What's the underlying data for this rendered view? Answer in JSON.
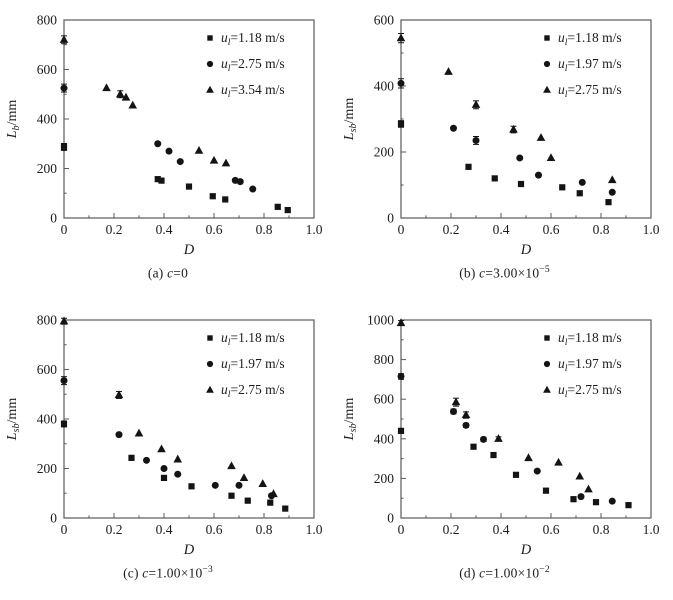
{
  "figure": {
    "background": "#ffffff",
    "axis_color": "#5a5a5a",
    "text_color": "#1c1c1c",
    "marker_color": "#141414"
  },
  "chart_data": [
    {
      "id": "a",
      "type": "scatter",
      "caption": {
        "prefix": "(a) ",
        "var": "c",
        "value": "=0",
        "exp": ""
      },
      "xlabel": "D",
      "ylabel": {
        "var": "L",
        "sub": "b",
        "unit": "/mm"
      },
      "xlim": [
        0,
        1.0
      ],
      "ylim": [
        0,
        800
      ],
      "xticks": [
        0,
        0.2,
        0.4,
        0.6,
        0.8,
        1.0
      ],
      "xtick_labels": [
        "0",
        "0.2",
        "0.4",
        "0.6",
        "0.8",
        "1.0"
      ],
      "yticks": [
        0,
        200,
        400,
        600,
        800
      ],
      "ytick_labels": [
        "0",
        "200",
        "400",
        "600",
        "800"
      ],
      "x_minor_step": 0.1,
      "y_minor_step": 100,
      "grid": false,
      "legend_position": "top-right",
      "series": [
        {
          "name": "ul=1.18 m/s",
          "marker": "square",
          "label": {
            "var": "u",
            "sub": "l",
            "value": "=1.18 m/s"
          },
          "points": [
            [
              0,
              287,
              14
            ],
            [
              0.375,
              157
            ],
            [
              0.39,
              151
            ],
            [
              0.5,
              127
            ],
            [
              0.595,
              88
            ],
            [
              0.645,
              75
            ],
            [
              0.855,
              45
            ],
            [
              0.895,
              32
            ]
          ]
        },
        {
          "name": "ul=2.75 m/s",
          "marker": "circle",
          "label": {
            "var": "u",
            "sub": "l",
            "value": "=2.75 m/s"
          },
          "points": [
            [
              0,
              525,
              16
            ],
            [
              0.375,
              300
            ],
            [
              0.42,
              270
            ],
            [
              0.465,
              228
            ],
            [
              0.685,
              152
            ],
            [
              0.705,
              147
            ],
            [
              0.755,
              117
            ]
          ]
        },
        {
          "name": "ul=3.54 m/s",
          "marker": "triangle",
          "label": {
            "var": "u",
            "sub": "l",
            "value": "=3.54 m/s"
          },
          "points": [
            [
              0,
              720,
              16
            ],
            [
              0.17,
              525
            ],
            [
              0.225,
              500,
              14
            ],
            [
              0.248,
              487
            ],
            [
              0.275,
              455
            ],
            [
              0.54,
              272
            ],
            [
              0.6,
              232
            ],
            [
              0.648,
              221
            ]
          ]
        }
      ]
    },
    {
      "id": "b",
      "type": "scatter",
      "caption": {
        "prefix": "(b) ",
        "var": "c",
        "value": "=3.00×10",
        "exp": "−5"
      },
      "xlabel": "D",
      "ylabel": {
        "var": "L",
        "sub": "sb",
        "unit": "/mm"
      },
      "xlim": [
        0,
        1.0
      ],
      "ylim": [
        0,
        600
      ],
      "xticks": [
        0,
        0.2,
        0.4,
        0.6,
        0.8,
        1.0
      ],
      "xtick_labels": [
        "0",
        "0.2",
        "0.4",
        "0.6",
        "0.8",
        "1.0"
      ],
      "yticks": [
        0,
        200,
        400,
        600
      ],
      "ytick_labels": [
        "0",
        "200",
        "400",
        "600"
      ],
      "x_minor_step": 0.1,
      "y_minor_step": 100,
      "grid": false,
      "legend_position": "top-right",
      "series": [
        {
          "name": "ul=1.18 m/s",
          "marker": "square",
          "label": {
            "var": "u",
            "sub": "l",
            "value": "=1.18 m/s"
          },
          "points": [
            [
              0,
              285,
              10
            ],
            [
              0.27,
              155
            ],
            [
              0.375,
              120
            ],
            [
              0.48,
              103
            ],
            [
              0.645,
              93
            ],
            [
              0.715,
              75
            ],
            [
              0.83,
              48
            ]
          ]
        },
        {
          "name": "ul=1.97 m/s",
          "marker": "circle",
          "label": {
            "var": "u",
            "sub": "l",
            "value": "=1.97 m/s"
          },
          "points": [
            [
              0,
              408,
              14
            ],
            [
              0.21,
              272
            ],
            [
              0.3,
              235,
              12
            ],
            [
              0.475,
              182
            ],
            [
              0.55,
              130
            ],
            [
              0.725,
              108
            ],
            [
              0.845,
              78
            ]
          ]
        },
        {
          "name": "ul=2.75 m/s",
          "marker": "triangle",
          "label": {
            "var": "u",
            "sub": "l",
            "value": "=2.75 m/s"
          },
          "points": [
            [
              0,
              545,
              14
            ],
            [
              0.19,
              443
            ],
            [
              0.3,
              343,
              12
            ],
            [
              0.45,
              268,
              10
            ],
            [
              0.56,
              243
            ],
            [
              0.6,
              182
            ],
            [
              0.845,
              115
            ]
          ]
        }
      ]
    },
    {
      "id": "c",
      "type": "scatter",
      "caption": {
        "prefix": "(c) ",
        "var": "c",
        "value": "=1.00×10",
        "exp": "−3"
      },
      "xlabel": "D",
      "ylabel": {
        "var": "L",
        "sub": "sb",
        "unit": "/mm"
      },
      "xlim": [
        0,
        1.0
      ],
      "ylim": [
        0,
        800
      ],
      "xticks": [
        0,
        0.2,
        0.4,
        0.6,
        0.8,
        1.0
      ],
      "xtick_labels": [
        "0",
        "0.2",
        "0.4",
        "0.6",
        "0.8",
        "1.0"
      ],
      "yticks": [
        0,
        200,
        400,
        600,
        800
      ],
      "ytick_labels": [
        "0",
        "200",
        "400",
        "600",
        "800"
      ],
      "x_minor_step": 0.1,
      "y_minor_step": 100,
      "grid": false,
      "legend_position": "top-right",
      "series": [
        {
          "name": "ul=1.18 m/s",
          "marker": "square",
          "label": {
            "var": "u",
            "sub": "l",
            "value": "=1.18 m/s"
          },
          "points": [
            [
              0,
              380,
              12
            ],
            [
              0.27,
              243
            ],
            [
              0.4,
              162
            ],
            [
              0.51,
              128
            ],
            [
              0.67,
              90
            ],
            [
              0.735,
              70
            ],
            [
              0.825,
              62
            ],
            [
              0.885,
              38
            ]
          ]
        },
        {
          "name": "ul=1.97 m/s",
          "marker": "circle",
          "label": {
            "var": "u",
            "sub": "l",
            "value": "=1.97 m/s"
          },
          "points": [
            [
              0,
              555,
              16
            ],
            [
              0.22,
              337
            ],
            [
              0.33,
              233
            ],
            [
              0.4,
              200
            ],
            [
              0.455,
              177
            ],
            [
              0.605,
              132
            ],
            [
              0.7,
              132
            ],
            [
              0.83,
              90
            ]
          ]
        },
        {
          "name": "ul=2.75 m/s",
          "marker": "triangle",
          "label": {
            "var": "u",
            "sub": "l",
            "value": "=2.75 m/s"
          },
          "points": [
            [
              0,
              795,
              12
            ],
            [
              0.22,
              497,
              14
            ],
            [
              0.3,
              342
            ],
            [
              0.39,
              278
            ],
            [
              0.455,
              237
            ],
            [
              0.67,
              210
            ],
            [
              0.72,
              162
            ],
            [
              0.795,
              138
            ],
            [
              0.838,
              97
            ]
          ]
        }
      ]
    },
    {
      "id": "d",
      "type": "scatter",
      "caption": {
        "prefix": "(d) ",
        "var": "c",
        "value": "=1.00×10",
        "exp": "−2"
      },
      "xlabel": "D",
      "ylabel": {
        "var": "L",
        "sub": "sb",
        "unit": "/mm"
      },
      "xlim": [
        0,
        1.0
      ],
      "ylim": [
        0,
        1000
      ],
      "xticks": [
        0,
        0.2,
        0.4,
        0.6,
        0.8,
        1.0
      ],
      "xtick_labels": [
        "0",
        "0.2",
        "0.4",
        "0.6",
        "0.8",
        "1.0"
      ],
      "yticks": [
        0,
        200,
        400,
        600,
        800,
        1000
      ],
      "ytick_labels": [
        "0",
        "200",
        "400",
        "600",
        "800",
        "1000"
      ],
      "x_minor_step": 0.1,
      "y_minor_step": 100,
      "grid": false,
      "legend_position": "top-right",
      "series": [
        {
          "name": "ul=1.18 m/s",
          "marker": "square",
          "label": {
            "var": "u",
            "sub": "l",
            "value": "=1.18 m/s"
          },
          "points": [
            [
              0,
              440,
              12
            ],
            [
              0.29,
              360
            ],
            [
              0.37,
              318
            ],
            [
              0.46,
              218
            ],
            [
              0.58,
              138
            ],
            [
              0.69,
              95
            ],
            [
              0.78,
              80
            ],
            [
              0.91,
              65
            ]
          ]
        },
        {
          "name": "ul=1.97 m/s",
          "marker": "circle",
          "label": {
            "var": "u",
            "sub": "l",
            "value": "=1.97 m/s"
          },
          "points": [
            [
              0,
              715,
              14
            ],
            [
              0.21,
              538,
              12
            ],
            [
              0.26,
              468,
              10
            ],
            [
              0.33,
              397,
              10
            ],
            [
              0.545,
              237
            ],
            [
              0.72,
              108
            ],
            [
              0.845,
              85
            ]
          ]
        },
        {
          "name": "ul=2.75 m/s",
          "marker": "triangle",
          "label": {
            "var": "u",
            "sub": "l",
            "value": "=2.75 m/s"
          },
          "points": [
            [
              0,
              985,
              12
            ],
            [
              0.22,
              585,
              20
            ],
            [
              0.26,
              520,
              16
            ],
            [
              0.39,
              400,
              10
            ],
            [
              0.51,
              303
            ],
            [
              0.63,
              280
            ],
            [
              0.715,
              210
            ],
            [
              0.75,
              145
            ]
          ]
        }
      ]
    }
  ]
}
